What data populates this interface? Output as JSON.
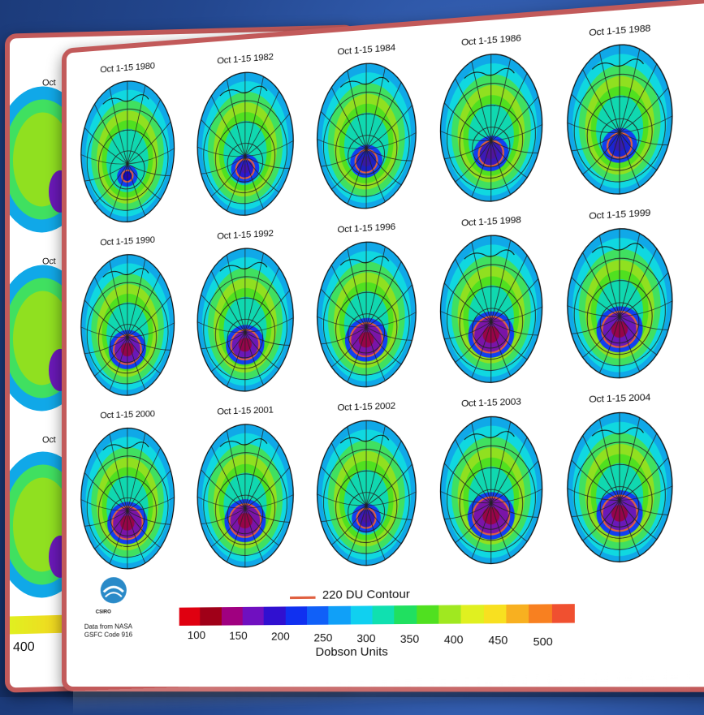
{
  "panels": [
    {
      "label": "Oct 1-15 1980",
      "hole": 0.22,
      "color": "#0a0ac8"
    },
    {
      "label": "Oct 1-15 1982",
      "hole": 0.36,
      "color": "#2a1ad0"
    },
    {
      "label": "Oct 1-15 1984",
      "hole": 0.42,
      "color": "#1d20c0"
    },
    {
      "label": "Oct 1-15 1986",
      "hole": 0.46,
      "color": "#3b1ab8"
    },
    {
      "label": "Oct 1-15 1988",
      "hole": 0.44,
      "color": "#1a24d0"
    },
    {
      "label": "Oct 1-15 1990",
      "hole": 0.56,
      "color": "#6a18b8"
    },
    {
      "label": "Oct 1-15 1992",
      "hole": 0.56,
      "color": "#6a18b8"
    },
    {
      "label": "Oct 1-15 1996",
      "hole": 0.62,
      "color": "#7a14a8"
    },
    {
      "label": "Oct 1-15 1998",
      "hole": 0.66,
      "color": "#7a14a8"
    },
    {
      "label": "Oct 1-15 1999",
      "hole": 0.64,
      "color": "#6a18b8"
    },
    {
      "label": "Oct 1-15 2000",
      "hole": 0.62,
      "color": "#7a14a8"
    },
    {
      "label": "Oct 1-15 2001",
      "hole": 0.62,
      "color": "#7a14a8"
    },
    {
      "label": "Oct 1-15 2002",
      "hole": 0.36,
      "color": "#3818b8"
    },
    {
      "label": "Oct 1-15 2003",
      "hole": 0.68,
      "color": "#7a14a8"
    },
    {
      "label": "Oct 1-15 2004",
      "hole": 0.64,
      "color": "#6a18b8"
    }
  ],
  "back_labels": [
    "Oct",
    "Oct",
    "Oct"
  ],
  "back_tick": "400",
  "legend": {
    "contour_label": "220 DU Contour",
    "contour_color": "#e06040",
    "units_label": "Dobson Units",
    "ticks": [
      "100",
      "150",
      "200",
      "250",
      "300",
      "350",
      "400",
      "450",
      "500"
    ],
    "colors": [
      "#e00010",
      "#a00018",
      "#a00080",
      "#7010c0",
      "#3010d0",
      "#1030f0",
      "#1060f8",
      "#10a0f8",
      "#10d0f0",
      "#10e0b0",
      "#20e060",
      "#50e020",
      "#a0e820",
      "#e0f020",
      "#f8e020",
      "#f8b020",
      "#f88020",
      "#f05030"
    ]
  },
  "logo": {
    "name": "CSIRO",
    "credit_line1": "Data from NASA",
    "credit_line2": "GSFC Code 916"
  }
}
